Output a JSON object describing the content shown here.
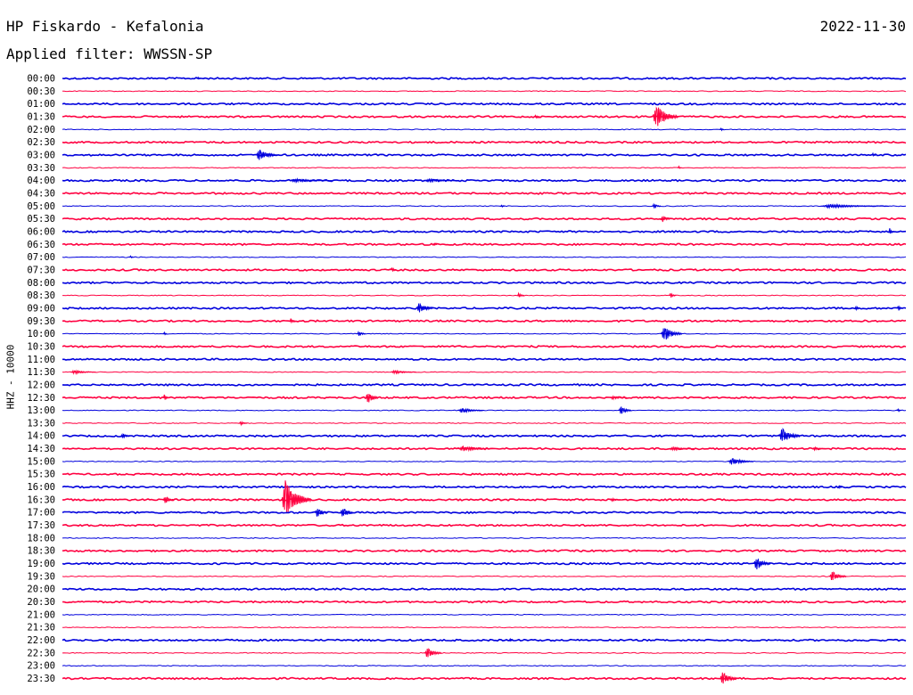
{
  "header": {
    "station": "HP Fiskardo - Kefalonia",
    "date": "2022-11-30",
    "filter": "Applied filter: WWSSN-SP"
  },
  "colors": {
    "even_trace": "#0000dd",
    "odd_trace": "#ff0040"
  },
  "chart_data": {
    "type": "line",
    "ylabel": "HHZ - 10000",
    "rows": [
      {
        "time": "00:00",
        "heavy": true,
        "events": [
          {
            "at": 0.16,
            "amp": 2,
            "len": 0.004
          }
        ]
      },
      {
        "time": "00:30",
        "heavy": false,
        "events": []
      },
      {
        "time": "01:00",
        "heavy": true,
        "events": []
      },
      {
        "time": "01:30",
        "heavy": true,
        "events": [
          {
            "at": 0.7,
            "amp": 14,
            "len": 0.03
          },
          {
            "at": 0.56,
            "amp": 2,
            "len": 0.006
          }
        ]
      },
      {
        "time": "02:00",
        "heavy": false,
        "events": [
          {
            "at": 0.78,
            "amp": 2,
            "len": 0.005
          }
        ]
      },
      {
        "time": "02:30",
        "heavy": true,
        "events": []
      },
      {
        "time": "03:00",
        "heavy": true,
        "events": [
          {
            "at": 0.23,
            "amp": 7,
            "len": 0.025
          },
          {
            "at": 0.96,
            "amp": 2,
            "len": 0.006
          }
        ]
      },
      {
        "time": "03:30",
        "heavy": false,
        "events": [
          {
            "at": 0.73,
            "amp": 2,
            "len": 0.004
          }
        ]
      },
      {
        "time": "04:00",
        "heavy": true,
        "events": [
          {
            "at": 0.27,
            "amp": 2,
            "len": 0.05
          },
          {
            "at": 0.43,
            "amp": 2,
            "len": 0.04
          }
        ]
      },
      {
        "time": "04:30",
        "heavy": true,
        "events": []
      },
      {
        "time": "05:00",
        "heavy": false,
        "events": [
          {
            "at": 0.52,
            "amp": 2,
            "len": 0.004
          },
          {
            "at": 0.7,
            "amp": 3,
            "len": 0.01
          },
          {
            "at": 0.9,
            "amp": 2,
            "len": 0.08
          }
        ]
      },
      {
        "time": "05:30",
        "heavy": true,
        "events": [
          {
            "at": 0.71,
            "amp": 4,
            "len": 0.012
          }
        ]
      },
      {
        "time": "06:00",
        "heavy": true,
        "events": [
          {
            "at": 0.98,
            "amp": 4,
            "len": 0.006
          }
        ]
      },
      {
        "time": "06:30",
        "heavy": true,
        "events": [
          {
            "at": 0.44,
            "amp": 2,
            "len": 0.004
          }
        ]
      },
      {
        "time": "07:00",
        "heavy": false,
        "events": [
          {
            "at": 0.08,
            "amp": 2,
            "len": 0.004
          }
        ]
      },
      {
        "time": "07:30",
        "heavy": true,
        "events": [
          {
            "at": 0.39,
            "amp": 3,
            "len": 0.006
          }
        ]
      },
      {
        "time": "08:00",
        "heavy": true,
        "events": []
      },
      {
        "time": "08:30",
        "heavy": false,
        "events": [
          {
            "at": 0.54,
            "amp": 3,
            "len": 0.008
          },
          {
            "at": 0.72,
            "amp": 3,
            "len": 0.008
          }
        ]
      },
      {
        "time": "09:00",
        "heavy": true,
        "events": [
          {
            "at": 0.42,
            "amp": 6,
            "len": 0.02
          },
          {
            "at": 0.94,
            "amp": 3,
            "len": 0.006
          },
          {
            "at": 0.99,
            "amp": 4,
            "len": 0.006
          }
        ]
      },
      {
        "time": "09:30",
        "heavy": true,
        "events": [
          {
            "at": 0.27,
            "amp": 3,
            "len": 0.006
          }
        ]
      },
      {
        "time": "10:00",
        "heavy": false,
        "events": [
          {
            "at": 0.12,
            "amp": 2,
            "len": 0.004
          },
          {
            "at": 0.35,
            "amp": 3,
            "len": 0.01
          },
          {
            "at": 0.71,
            "amp": 9,
            "len": 0.025
          }
        ]
      },
      {
        "time": "10:30",
        "heavy": true,
        "events": []
      },
      {
        "time": "11:00",
        "heavy": true,
        "events": []
      },
      {
        "time": "11:30",
        "heavy": false,
        "events": [
          {
            "at": 0.01,
            "amp": 2,
            "len": 0.03
          },
          {
            "at": 0.39,
            "amp": 2,
            "len": 0.03
          }
        ]
      },
      {
        "time": "12:00",
        "heavy": true,
        "events": []
      },
      {
        "time": "12:30",
        "heavy": true,
        "events": [
          {
            "at": 0.12,
            "amp": 4,
            "len": 0.006
          },
          {
            "at": 0.36,
            "amp": 8,
            "len": 0.015
          },
          {
            "at": 0.65,
            "amp": 2,
            "len": 0.02
          }
        ]
      },
      {
        "time": "13:00",
        "heavy": false,
        "events": [
          {
            "at": 0.47,
            "amp": 3,
            "len": 0.03
          },
          {
            "at": 0.66,
            "amp": 5,
            "len": 0.015
          },
          {
            "at": 0.99,
            "amp": 2,
            "len": 0.005
          }
        ]
      },
      {
        "time": "13:30",
        "heavy": false,
        "events": [
          {
            "at": 0.21,
            "amp": 2,
            "len": 0.01
          }
        ]
      },
      {
        "time": "14:00",
        "heavy": true,
        "events": [
          {
            "at": 0.07,
            "amp": 3,
            "len": 0.012
          },
          {
            "at": 0.85,
            "amp": 9,
            "len": 0.025
          }
        ]
      },
      {
        "time": "14:30",
        "heavy": true,
        "events": [
          {
            "at": 0.47,
            "amp": 3,
            "len": 0.04
          },
          {
            "at": 0.72,
            "amp": 2,
            "len": 0.03
          },
          {
            "at": 0.89,
            "amp": 2,
            "len": 0.015
          }
        ]
      },
      {
        "time": "15:00",
        "heavy": false,
        "events": [
          {
            "at": 0.79,
            "amp": 4,
            "len": 0.03
          }
        ]
      },
      {
        "time": "15:30",
        "heavy": true,
        "events": []
      },
      {
        "time": "16:00",
        "heavy": true,
        "events": [
          {
            "at": 0.92,
            "amp": 2,
            "len": 0.006
          }
        ]
      },
      {
        "time": "16:30",
        "heavy": true,
        "events": [
          {
            "at": 0.12,
            "amp": 5,
            "len": 0.012
          },
          {
            "at": 0.26,
            "amp": 22,
            "len": 0.035
          },
          {
            "at": 0.65,
            "amp": 2,
            "len": 0.012
          }
        ]
      },
      {
        "time": "17:00",
        "heavy": true,
        "events": [
          {
            "at": 0.3,
            "amp": 6,
            "len": 0.015
          },
          {
            "at": 0.33,
            "amp": 7,
            "len": 0.015
          }
        ]
      },
      {
        "time": "17:30",
        "heavy": true,
        "events": []
      },
      {
        "time": "18:00",
        "heavy": false,
        "events": []
      },
      {
        "time": "18:30",
        "heavy": true,
        "events": []
      },
      {
        "time": "19:00",
        "heavy": true,
        "events": [
          {
            "at": 0.82,
            "amp": 8,
            "len": 0.02
          }
        ]
      },
      {
        "time": "19:30",
        "heavy": false,
        "events": [
          {
            "at": 0.91,
            "amp": 6,
            "len": 0.02
          }
        ]
      },
      {
        "time": "20:00",
        "heavy": true,
        "events": []
      },
      {
        "time": "20:30",
        "heavy": true,
        "events": []
      },
      {
        "time": "21:00",
        "heavy": false,
        "events": []
      },
      {
        "time": "21:30",
        "heavy": false,
        "events": []
      },
      {
        "time": "22:00",
        "heavy": true,
        "events": [
          {
            "at": 0.53,
            "amp": 2,
            "len": 0.004
          }
        ]
      },
      {
        "time": "22:30",
        "heavy": false,
        "events": [
          {
            "at": 0.43,
            "amp": 6,
            "len": 0.02
          }
        ]
      },
      {
        "time": "23:00",
        "heavy": false,
        "events": []
      },
      {
        "time": "23:30",
        "heavy": true,
        "events": [
          {
            "at": 0.78,
            "amp": 8,
            "len": 0.02
          }
        ]
      }
    ]
  }
}
